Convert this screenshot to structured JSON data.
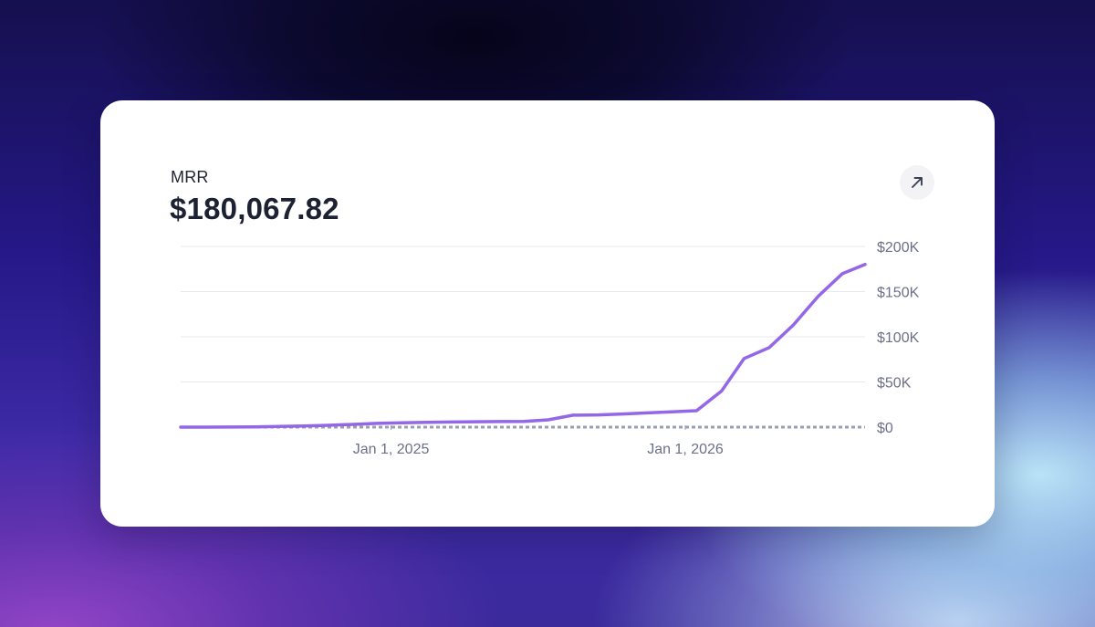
{
  "card": {
    "title": "MRR",
    "value": "$180,067.82"
  },
  "expand_button": {
    "icon": "arrow-up-right-icon"
  },
  "colors": {
    "line": "#9467e6",
    "baseline": "#9a9fb2",
    "grid": "#e6e8ef"
  },
  "chart_data": {
    "type": "line",
    "ylim": [
      0,
      200000
    ],
    "y_ticks": [
      {
        "value": 0,
        "label": "$0"
      },
      {
        "value": 50000,
        "label": "$50K"
      },
      {
        "value": 100000,
        "label": "$100K"
      },
      {
        "value": 150000,
        "label": "$150K"
      },
      {
        "value": 200000,
        "label": "$200K"
      }
    ],
    "x_ticks": [
      {
        "x": "2025-01-01",
        "label": "Jan 1, 2025"
      },
      {
        "x": "2026-01-01",
        "label": "Jan 1, 2026"
      }
    ],
    "grid": true,
    "baseline": {
      "value": 0,
      "style": "dashed"
    },
    "series": [
      {
        "points": [
          {
            "x": "2024-04-15",
            "y": 0
          },
          {
            "x": "2024-05-15",
            "y": 0
          },
          {
            "x": "2024-06-15",
            "y": 100
          },
          {
            "x": "2024-07-15",
            "y": 300
          },
          {
            "x": "2024-08-15",
            "y": 700
          },
          {
            "x": "2024-09-15",
            "y": 1300
          },
          {
            "x": "2024-10-15",
            "y": 2000
          },
          {
            "x": "2024-11-15",
            "y": 3000
          },
          {
            "x": "2024-12-15",
            "y": 4100
          },
          {
            "x": "2025-01-15",
            "y": 4800
          },
          {
            "x": "2025-02-15",
            "y": 5400
          },
          {
            "x": "2025-03-15",
            "y": 5700
          },
          {
            "x": "2025-04-15",
            "y": 6000
          },
          {
            "x": "2025-05-15",
            "y": 6200
          },
          {
            "x": "2025-06-15",
            "y": 6400
          },
          {
            "x": "2025-07-15",
            "y": 8100
          },
          {
            "x": "2025-08-15",
            "y": 13200
          },
          {
            "x": "2025-09-15",
            "y": 13500
          },
          {
            "x": "2025-10-15",
            "y": 14500
          },
          {
            "x": "2025-11-15",
            "y": 15800
          },
          {
            "x": "2025-12-15",
            "y": 17000
          },
          {
            "x": "2026-01-15",
            "y": 18200
          },
          {
            "x": "2026-02-15",
            "y": 40000
          },
          {
            "x": "2026-03-15",
            "y": 76000
          },
          {
            "x": "2026-04-15",
            "y": 88000
          },
          {
            "x": "2026-05-15",
            "y": 113000
          },
          {
            "x": "2026-06-15",
            "y": 145000
          },
          {
            "x": "2026-07-15",
            "y": 170000
          },
          {
            "x": "2026-08-12",
            "y": 180067.82
          }
        ]
      }
    ]
  }
}
